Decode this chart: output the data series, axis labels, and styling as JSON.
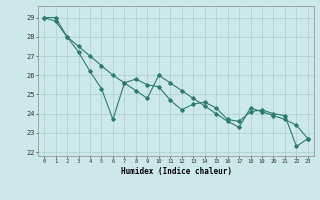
{
  "xlabel": "Humidex (Indice chaleur)",
  "bg_color": "#cce8e8",
  "grid_color": "#aacfcf",
  "line_color": "#2d7a6e",
  "marker_color": "#2d7a6e",
  "xlim": [
    -0.5,
    23.5
  ],
  "ylim": [
    21.8,
    29.6
  ],
  "yticks": [
    22,
    23,
    24,
    25,
    26,
    27,
    28,
    29
  ],
  "xticks": [
    0,
    1,
    2,
    3,
    4,
    5,
    6,
    7,
    8,
    9,
    10,
    11,
    12,
    13,
    14,
    15,
    16,
    17,
    18,
    19,
    20,
    21,
    22,
    23
  ],
  "series1_x": [
    0,
    1,
    2,
    3,
    4,
    5,
    6,
    7,
    8,
    9,
    10,
    11,
    12,
    13,
    14,
    15,
    16,
    17,
    18,
    19,
    20,
    21,
    22,
    23
  ],
  "series1_y": [
    29.0,
    29.0,
    28.0,
    27.2,
    26.2,
    25.3,
    23.7,
    25.6,
    25.8,
    25.5,
    25.4,
    24.7,
    24.2,
    24.5,
    24.6,
    24.3,
    23.7,
    23.6,
    24.1,
    24.2,
    24.0,
    23.9,
    22.3,
    22.7
  ],
  "series2_x": [
    0,
    1,
    2,
    3,
    4,
    5,
    6,
    7,
    8,
    9,
    10,
    11,
    12,
    13,
    14,
    15,
    16,
    17,
    18,
    19,
    20,
    21,
    22,
    23
  ],
  "series2_y": [
    29.0,
    28.8,
    28.0,
    27.5,
    27.0,
    26.5,
    26.0,
    25.6,
    25.2,
    24.8,
    26.0,
    25.6,
    25.2,
    24.8,
    24.4,
    24.0,
    23.6,
    23.3,
    24.3,
    24.1,
    23.9,
    23.7,
    23.4,
    22.7
  ]
}
